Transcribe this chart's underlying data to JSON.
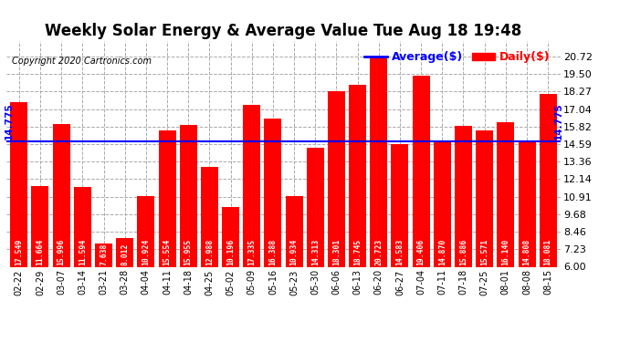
{
  "title": "Weekly Solar Energy & Average Value Tue Aug 18 19:48",
  "copyright": "Copyright 2020 Cartronics.com",
  "legend_average": "Average($)",
  "legend_daily": "Daily($)",
  "categories": [
    "02-22",
    "02-29",
    "03-07",
    "03-14",
    "03-21",
    "03-28",
    "04-04",
    "04-11",
    "04-18",
    "04-25",
    "05-02",
    "05-09",
    "05-16",
    "05-23",
    "05-30",
    "06-06",
    "06-13",
    "06-20",
    "06-27",
    "07-04",
    "07-11",
    "07-18",
    "07-25",
    "08-01",
    "08-08",
    "08-15"
  ],
  "values": [
    17.549,
    11.664,
    15.996,
    11.594,
    7.638,
    8.012,
    10.924,
    15.554,
    15.955,
    12.988,
    10.196,
    17.335,
    16.388,
    10.934,
    14.313,
    18.301,
    18.745,
    20.723,
    14.583,
    19.406,
    14.87,
    15.886,
    15.571,
    16.14,
    14.808,
    18.081
  ],
  "average_line": 14.775,
  "bar_color": "#ff0000",
  "average_line_color": "#0000ff",
  "bar_label_color": "#ffffff",
  "yticks": [
    6.0,
    7.23,
    8.46,
    9.68,
    10.91,
    12.14,
    13.36,
    14.59,
    15.82,
    17.04,
    18.27,
    19.5,
    20.72
  ],
  "ylim": [
    6.0,
    21.8
  ],
  "background_color": "#ffffff",
  "grid_color": "#aaaaaa",
  "title_fontsize": 12,
  "bar_label_fontsize": 5.8,
  "avg_label": "14.775",
  "avg_label_fontsize": 7.5,
  "copyright_fontsize": 7,
  "legend_fontsize": 9,
  "xtick_fontsize": 7,
  "ytick_fontsize": 8
}
